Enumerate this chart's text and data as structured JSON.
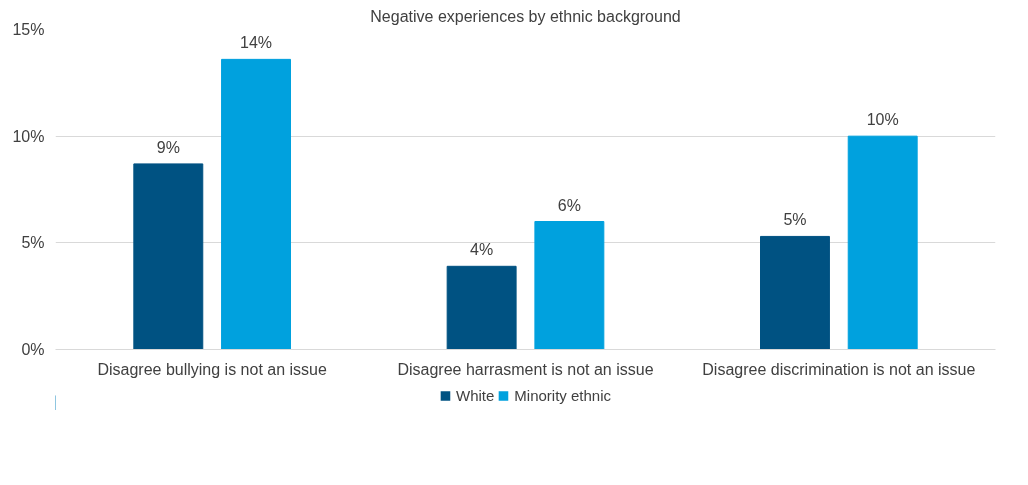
{
  "chart_data": {
    "type": "bar",
    "title": "Negative experiences by ethnic background",
    "categories": [
      "Disagree bullying is not an issue",
      "Disagree harrasment is not an issue",
      "Disagree discrimination is not an issue"
    ],
    "series": [
      {
        "name": "White",
        "color": "#005282",
        "values": [
          8.7,
          3.9,
          5.3
        ],
        "value_labels": [
          "9%",
          "4%",
          "5%"
        ]
      },
      {
        "name": "Minority ethnic",
        "color": "#00a1de",
        "values": [
          13.6,
          6.0,
          10.0
        ],
        "value_labels": [
          "14%",
          "6%",
          "10%"
        ]
      }
    ],
    "ylim": [
      0,
      15
    ],
    "yticks": [
      {
        "value": 0,
        "label": "0%"
      },
      {
        "value": 5,
        "label": "5%"
      },
      {
        "value": 10,
        "label": "10%"
      },
      {
        "value": 15,
        "label": "15%"
      }
    ],
    "grid": "y",
    "legend": "bottom"
  }
}
